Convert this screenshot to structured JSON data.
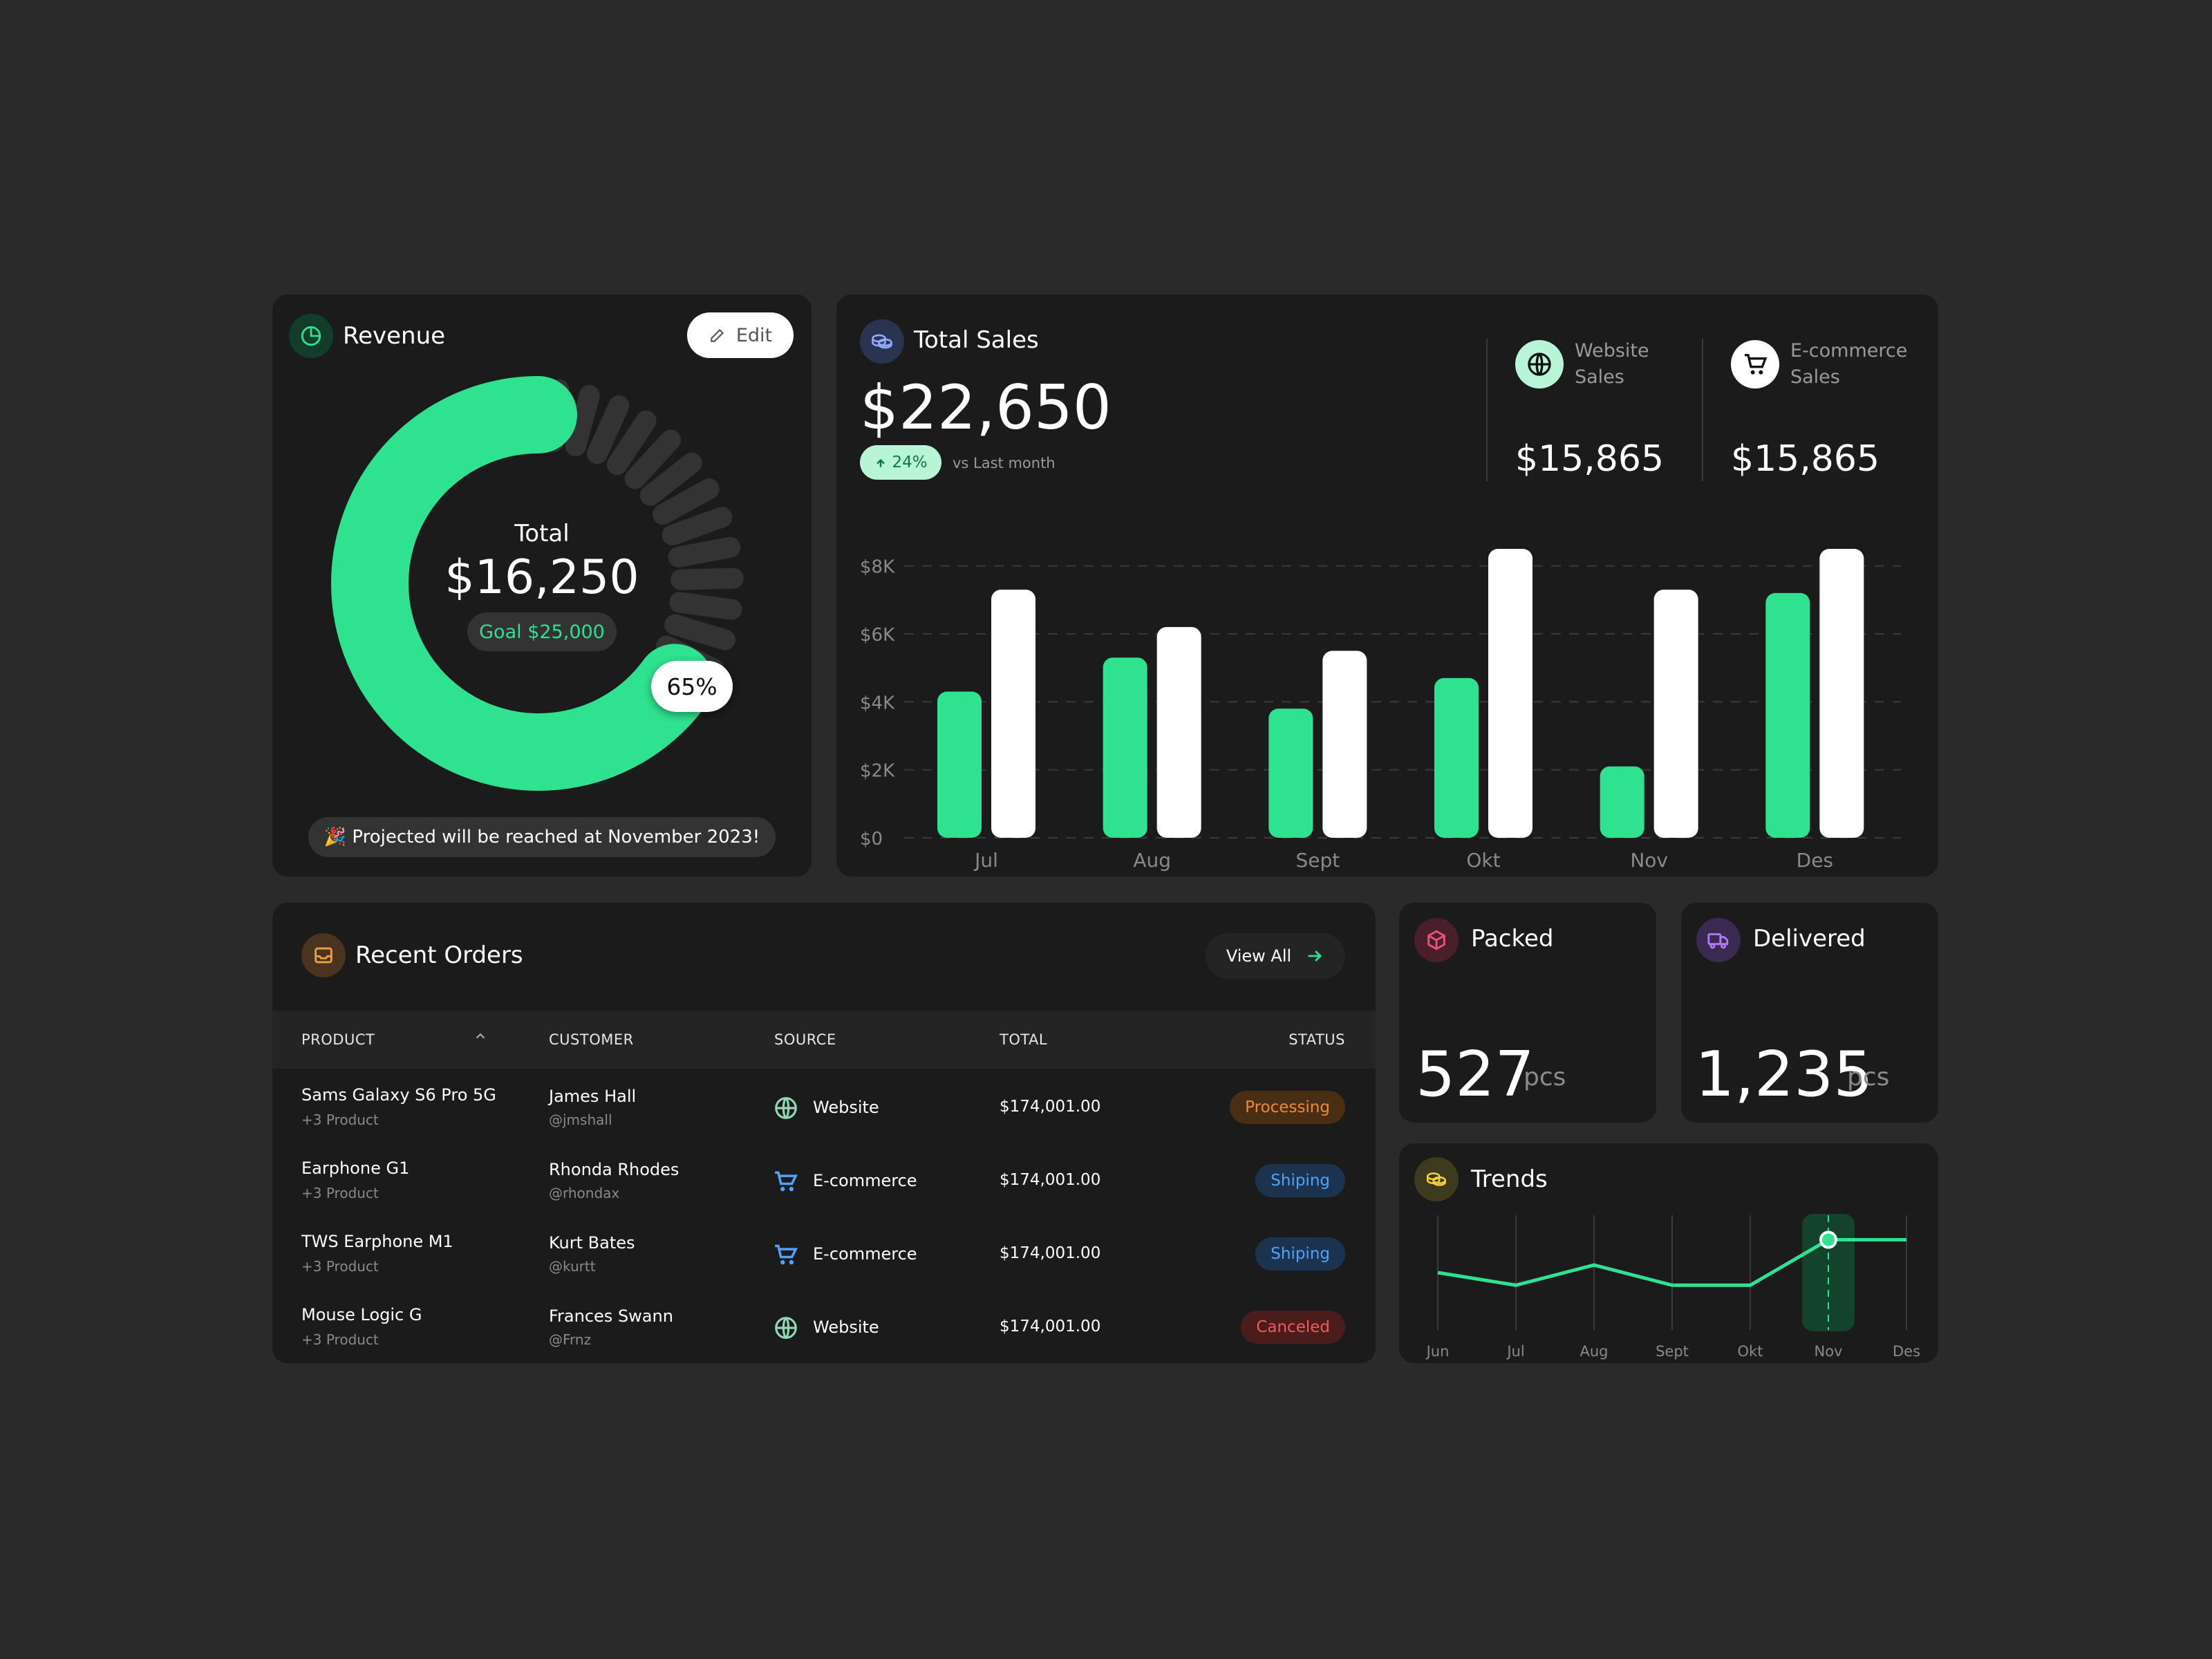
{
  "revenue": {
    "title": "Revenue",
    "edit_label": "Edit",
    "total_label": "Total",
    "total_value": "$16,250",
    "goal_label": "Goal $25,000",
    "percent_label": "65%",
    "percent": 0.65,
    "projection": "🎉 Projected will be reached at November 2023!"
  },
  "total_sales": {
    "title": "Total Sales",
    "value": "$22,650",
    "change": "24%",
    "change_caption": "vs Last month",
    "website_label_1": "Website",
    "website_label_2": "Sales",
    "website_value": "$15,865",
    "ecommerce_label_1": "E-commerce",
    "ecommerce_label_2": "Sales",
    "ecommerce_value": "$15,865"
  },
  "chart_data": {
    "type": "bar",
    "categories": [
      "Jul",
      "Aug",
      "Sept",
      "Okt",
      "Nov",
      "Des"
    ],
    "series": [
      {
        "values": [
          4300,
          5300,
          3800,
          4700,
          2100,
          7200
        ]
      },
      {
        "values": [
          7300,
          6200,
          5500,
          8500,
          7300,
          8500
        ]
      }
    ],
    "yticks": [
      "$8K",
      "$6K",
      "$4K",
      "$2K",
      "$0"
    ],
    "ylim": [
      0,
      8500
    ],
    "grid": true,
    "colors": [
      "#2fe28f",
      "#ffffff"
    ]
  },
  "orders": {
    "title": "Recent Orders",
    "view_all": "View All",
    "columns": {
      "product": "PRODUCT",
      "customer": "CUSTOMER",
      "source": "SOURCE",
      "total": "TOTAL",
      "status": "STATUS"
    },
    "rows": [
      {
        "product": "Sams Galaxy S6 Pro 5G",
        "sub": "+3 Product",
        "customer": "James Hall",
        "handle": "@jmshall",
        "source": "Website",
        "source_icon": "globe-icon",
        "total": "$174,001.00",
        "status": "Processing",
        "status_kind": "processing"
      },
      {
        "product": "Earphone G1",
        "sub": "+3 Product",
        "customer": "Rhonda Rhodes",
        "handle": "@rhondax",
        "source": "E-commerce",
        "source_icon": "cart-icon",
        "total": "$174,001.00",
        "status": "Shiping",
        "status_kind": "shipping"
      },
      {
        "product": "TWS Earphone M1",
        "sub": "+3 Product",
        "customer": "Kurt Bates",
        "handle": "@kurtt",
        "source": "E-commerce",
        "source_icon": "cart-icon",
        "total": "$174,001.00",
        "status": "Shiping",
        "status_kind": "shipping"
      },
      {
        "product": "Mouse Logic G",
        "sub": "+3 Product",
        "customer": "Frances Swann",
        "handle": "@Frnz",
        "source": "Website",
        "source_icon": "globe-icon",
        "total": "$174,001.00",
        "status": "Canceled",
        "status_kind": "canceled"
      }
    ]
  },
  "packed": {
    "title": "Packed",
    "value": "527",
    "unit": "pcs"
  },
  "delivered": {
    "title": "Delivered",
    "value": "1,235",
    "unit": "pcs"
  },
  "trends": {
    "title": "Trends",
    "months": [
      "Jun",
      "Jul",
      "Aug",
      "Sept",
      "Okt",
      "Nov",
      "Des"
    ],
    "values": [
      3,
      2.5,
      3.3,
      2.5,
      2.5,
      4.3,
      4.3
    ],
    "highlight": "Nov"
  },
  "colors": {
    "accent": "#2fe28f",
    "background": "#2a2a2a",
    "card": "#1b1b1b",
    "processing": "#f08a3a",
    "shipping": "#4ea3ff",
    "canceled": "#f25a5a"
  }
}
